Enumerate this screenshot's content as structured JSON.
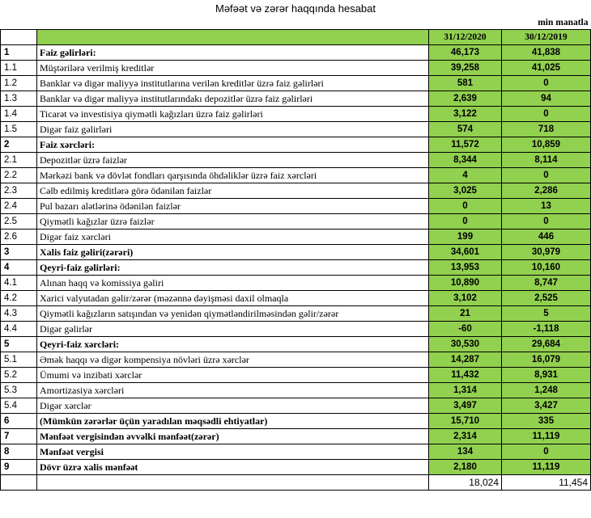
{
  "title": "Məfəət və zərər haqqında hesabat",
  "unit": "min manatla",
  "columns": [
    "31/12/2020",
    "30/12/2019"
  ],
  "rows": [
    {
      "num": "1",
      "label": "Faiz gəlirləri:",
      "v2020": "46,173",
      "v2019": "41,838",
      "bold": true
    },
    {
      "num": "1.1",
      "label": "Müştərilərə verilmiş kreditlər",
      "v2020": "39,258",
      "v2019": "41,025",
      "bold": false
    },
    {
      "num": "1.2",
      "label": "Banklar və digər maliyyə institutlarına verilən kreditlər üzrə faiz gəlirləri",
      "v2020": "581",
      "v2019": "0",
      "bold": false
    },
    {
      "num": "1.3",
      "label": "Banklar və digər maliyyə institutlarındakı depozitlər üzrə faiz gəlirləri",
      "v2020": "2,639",
      "v2019": "94",
      "bold": false
    },
    {
      "num": "1.4",
      "label": "Ticarət və investisiya qiymətli kağızları üzrə faiz gəlirləri",
      "v2020": "3,122",
      "v2019": "0",
      "bold": false
    },
    {
      "num": "1.5",
      "label": "Digər faiz gəlirləri",
      "v2020": "574",
      "v2019": "718",
      "bold": false
    },
    {
      "num": "2",
      "label": "Faiz xərcləri:",
      "v2020": "11,572",
      "v2019": "10,859",
      "bold": true
    },
    {
      "num": "2.1",
      "label": "Depozitlər üzrə faizlər",
      "v2020": "8,344",
      "v2019": "8,114",
      "bold": false
    },
    {
      "num": "2.2",
      "label": "Mərkəzi bank və dövlət fondları qarşısında öhdəliklər üzrə faiz xərcləri",
      "v2020": "4",
      "v2019": "0",
      "bold": false
    },
    {
      "num": "2.3",
      "label": "Cəlb edilmiş kreditlərə görə ödənilən faizlər",
      "v2020": "3,025",
      "v2019": "2,286",
      "bold": false
    },
    {
      "num": "2.4",
      "label": "Pul bazarı alətlərinə ödənilən faizlər",
      "v2020": "0",
      "v2019": "13",
      "bold": false
    },
    {
      "num": "2.5",
      "label": "Qiymətli kağızlar üzrə faizlər",
      "v2020": "0",
      "v2019": "0",
      "bold": false
    },
    {
      "num": "2.6",
      "label": "Digər faiz xərcləri",
      "v2020": "199",
      "v2019": "446",
      "bold": false
    },
    {
      "num": "3",
      "label": "Xalis faiz gəliri(zərəri)",
      "v2020": "34,601",
      "v2019": "30,979",
      "bold": true
    },
    {
      "num": "4",
      "label": "Qeyri-faiz gəlirləri:",
      "v2020": "13,953",
      "v2019": "10,160",
      "bold": true
    },
    {
      "num": "4.1",
      "label": "Alınan haqq və komissiya gəliri",
      "v2020": "10,890",
      "v2019": "8,747",
      "bold": false
    },
    {
      "num": "4.2",
      "label": "Xarici valyutadan gəlir/zərər (məzənnə dəyişməsi daxil olmaqla",
      "v2020": "3,102",
      "v2019": "2,525",
      "bold": false
    },
    {
      "num": "4.3",
      "label": "Qiymətli kağızların satışından və yenidən qiymətləndirilməsindən gəlir/zərər",
      "v2020": "21",
      "v2019": "5",
      "bold": false
    },
    {
      "num": "4.4",
      "label": "Digər gəlirlər",
      "v2020": "-60",
      "v2019": "-1,118",
      "bold": false
    },
    {
      "num": "5",
      "label": "Qeyri-faiz xərcləri:",
      "v2020": "30,530",
      "v2019": "29,684",
      "bold": true
    },
    {
      "num": "5.1",
      "label": "Əmək haqqı və digər kompensiya növləri üzrə xərclər",
      "v2020": "14,287",
      "v2019": "16,079",
      "bold": false
    },
    {
      "num": "5.2",
      "label": "Ümumi və inzibati xərclər",
      "v2020": "11,432",
      "v2019": "8,931",
      "bold": false
    },
    {
      "num": "5.3",
      "label": "Amortizasiya xərcləri",
      "v2020": "1,314",
      "v2019": "1,248",
      "bold": false
    },
    {
      "num": "5.4",
      "label": "Digər xərclər",
      "v2020": "3,497",
      "v2019": "3,427",
      "bold": false
    },
    {
      "num": "6",
      "label": "(Mümkün zərərlər üçün yaradılan məqsədli ehtiyatlar)",
      "v2020": "15,710",
      "v2019": "335",
      "bold": true
    },
    {
      "num": "7",
      "label": "Mənfəət vergisindən əvvəlki mənfəət(zərər)",
      "v2020": "2,314",
      "v2019": "11,119",
      "bold": true
    },
    {
      "num": "8",
      "label": "Mənfəət vergisi",
      "v2020": "134",
      "v2019": "0",
      "bold": true
    },
    {
      "num": "9",
      "label": "Dövr üzrə xalis mənfəət",
      "v2020": "2,180",
      "v2019": "11,119",
      "bold": true
    }
  ],
  "totals": {
    "v2020": "18,024",
    "v2019": "11,454"
  }
}
